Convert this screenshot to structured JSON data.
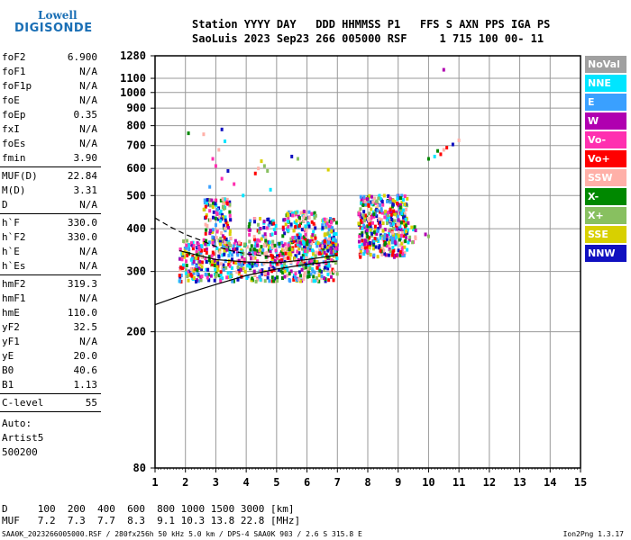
{
  "logo": {
    "line1": "Lowell",
    "line2": "DIGISONDE"
  },
  "header": {
    "line1": "Station YYYY DAY   DDD HHMMSS P1   FFS S AXN PPS IGA PS",
    "line2": "SaoLuis 2023 Sep23 266 005000 RSF     1 715 100 00- 11"
  },
  "params_group1": [
    {
      "key": "foF2",
      "value": "6.900"
    },
    {
      "key": "foF1",
      "value": "N/A"
    },
    {
      "key": "foF1p",
      "value": "N/A"
    },
    {
      "key": "foE",
      "value": "N/A"
    },
    {
      "key": "foEp",
      "value": "0.35"
    },
    {
      "key": "fxI",
      "value": "N/A"
    },
    {
      "key": "foEs",
      "value": "N/A"
    },
    {
      "key": "fmin",
      "value": "3.90"
    }
  ],
  "params_group2": [
    {
      "key": "MUF(D)",
      "value": "22.84"
    },
    {
      "key": "M(D)",
      "value": "3.31"
    },
    {
      "key": "D",
      "value": "N/A"
    }
  ],
  "params_group3": [
    {
      "key": "h`F",
      "value": "330.0"
    },
    {
      "key": "h`F2",
      "value": "330.0"
    },
    {
      "key": "h`E",
      "value": "N/A"
    },
    {
      "key": "h`Es",
      "value": "N/A"
    }
  ],
  "params_group4": [
    {
      "key": "hmF2",
      "value": "319.3"
    },
    {
      "key": "hmF1",
      "value": "N/A"
    },
    {
      "key": "hmE",
      "value": "110.0"
    },
    {
      "key": "yF2",
      "value": "32.5"
    },
    {
      "key": "yF1",
      "value": "N/A"
    },
    {
      "key": "yE",
      "value": "20.0"
    },
    {
      "key": "B0",
      "value": "40.6"
    },
    {
      "key": "B1",
      "value": "1.13"
    }
  ],
  "c_level": {
    "key": "C-level",
    "value": "55"
  },
  "autoscale": [
    "Auto:",
    "Artist5",
    "500200"
  ],
  "legend": [
    {
      "label": "NoVal",
      "color": "#a0a0a0"
    },
    {
      "label": "NNE",
      "color": "#00e5ff"
    },
    {
      "label": "E",
      "color": "#3aa0ff"
    },
    {
      "label": "W",
      "color": "#b000b0"
    },
    {
      "label": "Vo-",
      "color": "#ff30b0"
    },
    {
      "label": "Vo+",
      "color": "#ff0000"
    },
    {
      "label": "SSW",
      "color": "#ffb0a8"
    },
    {
      "label": "X-",
      "color": "#008800"
    },
    {
      "label": "X+",
      "color": "#88c060"
    },
    {
      "label": "SSE",
      "color": "#d8d000"
    },
    {
      "label": "NNW",
      "color": "#1010c0"
    }
  ],
  "chart_data": {
    "type": "scatter",
    "xlim": [
      1,
      15
    ],
    "ylim_log": [
      80,
      1280
    ],
    "x_ticks": [
      "1",
      "2",
      "3",
      "4",
      "5",
      "6",
      "7",
      "8",
      "9",
      "10",
      "11",
      "12",
      "13",
      "14",
      "15"
    ],
    "y_ticks": [
      {
        "value": 80,
        "label": "80"
      },
      {
        "value": 200,
        "label": "200"
      },
      {
        "value": 300,
        "label": "300"
      },
      {
        "value": 400,
        "label": "400"
      },
      {
        "value": 500,
        "label": "500"
      },
      {
        "value": 600,
        "label": "600"
      },
      {
        "value": 700,
        "label": "700"
      },
      {
        "value": 800,
        "label": "800"
      },
      {
        "value": 900,
        "label": "900"
      },
      {
        "value": 1000,
        "label": "1000"
      },
      {
        "value": 1100,
        "label": "1100"
      },
      {
        "value": 1280,
        "label": "1280"
      }
    ],
    "clusters": [
      {
        "x": [
          1.8,
          7.0
        ],
        "y": [
          280,
          370
        ],
        "n": 700
      },
      {
        "x": [
          2.6,
          3.5
        ],
        "y": [
          360,
          490
        ],
        "n": 120
      },
      {
        "x": [
          4.0,
          5.0
        ],
        "y": [
          340,
          430
        ],
        "n": 50
      },
      {
        "x": [
          5.2,
          6.3
        ],
        "y": [
          360,
          450
        ],
        "n": 120
      },
      {
        "x": [
          6.5,
          7.0
        ],
        "y": [
          340,
          430
        ],
        "n": 80
      },
      {
        "x": [
          7.7,
          9.3
        ],
        "y": [
          330,
          500
        ],
        "n": 400
      },
      {
        "x": [
          9.0,
          9.6
        ],
        "y": [
          360,
          420
        ],
        "n": 30
      }
    ],
    "sparse_points": [
      {
        "x": 2.1,
        "y": 760
      },
      {
        "x": 2.6,
        "y": 755
      },
      {
        "x": 3.2,
        "y": 780
      },
      {
        "x": 3.1,
        "y": 680
      },
      {
        "x": 3.3,
        "y": 720
      },
      {
        "x": 2.9,
        "y": 640
      },
      {
        "x": 3.0,
        "y": 610
      },
      {
        "x": 3.4,
        "y": 590
      },
      {
        "x": 3.2,
        "y": 560
      },
      {
        "x": 4.4,
        "y": 600
      },
      {
        "x": 4.6,
        "y": 610
      },
      {
        "x": 4.5,
        "y": 630
      },
      {
        "x": 4.3,
        "y": 580
      },
      {
        "x": 4.7,
        "y": 590
      },
      {
        "x": 5.5,
        "y": 650
      },
      {
        "x": 5.7,
        "y": 640
      },
      {
        "x": 6.7,
        "y": 595
      },
      {
        "x": 3.6,
        "y": 540
      },
      {
        "x": 4.8,
        "y": 520
      },
      {
        "x": 3.9,
        "y": 500
      },
      {
        "x": 2.8,
        "y": 530
      },
      {
        "x": 10.0,
        "y": 640
      },
      {
        "x": 10.2,
        "y": 650
      },
      {
        "x": 10.4,
        "y": 660
      },
      {
        "x": 10.5,
        "y": 680
      },
      {
        "x": 10.6,
        "y": 690
      },
      {
        "x": 10.3,
        "y": 675
      },
      {
        "x": 10.8,
        "y": 705
      },
      {
        "x": 11.0,
        "y": 725
      },
      {
        "x": 10.5,
        "y": 1165
      },
      {
        "x": 9.9,
        "y": 385
      },
      {
        "x": 10.0,
        "y": 380
      }
    ],
    "solid_curve_x": [
      1.0,
      2.0,
      3.0,
      4.0,
      5.0,
      6.0,
      7.0
    ],
    "solid_curve_y": [
      240,
      258,
      275,
      292,
      305,
      315,
      322
    ],
    "solid_curve2_x": [
      1.8,
      3.0,
      4.0,
      5.0,
      6.0,
      7.0
    ],
    "solid_curve2_y": [
      345,
      325,
      320,
      318,
      325,
      335
    ],
    "dashed_curve_x": [
      1.0,
      1.5,
      2.0,
      2.5,
      3.0,
      3.5,
      4.0,
      5.0
    ],
    "dashed_curve_y": [
      430,
      405,
      385,
      370,
      355,
      345,
      338,
      330
    ]
  },
  "d_row": {
    "label": "D",
    "values": [
      "100",
      "200",
      "400",
      "600",
      "800",
      "1000",
      "1500",
      "3000"
    ],
    "unit": "[km]"
  },
  "muf_row": {
    "label": "MUF",
    "values": [
      "7.2",
      "7.3",
      "7.7",
      "8.3",
      "9.1",
      "10.3",
      "13.8",
      "22.8"
    ],
    "unit": "[MHz]"
  },
  "footer": "SAA0K_2023266005000.RSF / 280fx256h 50 kHz 5.0 km / DPS-4 SAA0K 903 / 2.6 S 315.8 E",
  "version": "Ion2Png 1.3.17"
}
